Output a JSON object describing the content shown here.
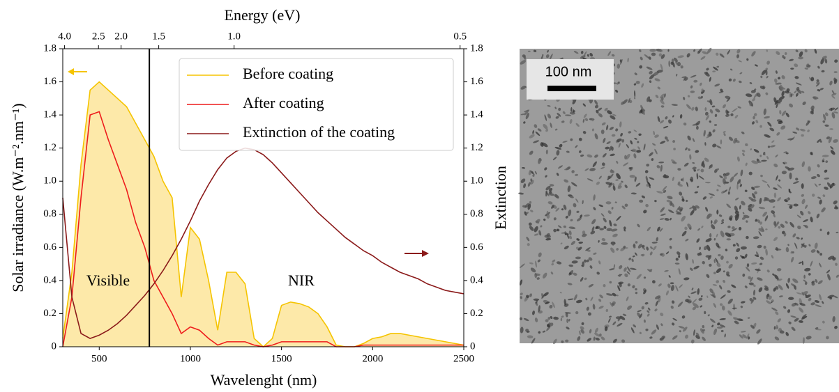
{
  "chart_data": {
    "type": "line",
    "title": "Energy (eV)",
    "x_label": "Wavelenght (nm)",
    "y_label": "Solar irradiance (W.m⁻².nm⁻¹)",
    "y2_label": "Extinction",
    "x": [
      300,
      350,
      400,
      450,
      500,
      550,
      600,
      650,
      700,
      750,
      800,
      850,
      900,
      950,
      1000,
      1050,
      1100,
      1150,
      1200,
      1250,
      1300,
      1350,
      1400,
      1450,
      1500,
      1550,
      1600,
      1650,
      1700,
      1750,
      1800,
      1850,
      1900,
      1950,
      2000,
      2050,
      2100,
      2150,
      2200,
      2250,
      2300,
      2350,
      2400,
      2450,
      2500
    ],
    "series": [
      {
        "name": "Before coating",
        "color": "#f5c400",
        "fill": "#fde9a9",
        "values": [
          0.05,
          0.45,
          1.1,
          1.55,
          1.6,
          1.55,
          1.5,
          1.45,
          1.35,
          1.25,
          1.15,
          1.0,
          0.9,
          0.3,
          0.72,
          0.65,
          0.4,
          0.1,
          0.45,
          0.45,
          0.38,
          0.05,
          0,
          0.05,
          0.25,
          0.27,
          0.26,
          0.24,
          0.2,
          0.12,
          0.01,
          0,
          0,
          0.02,
          0.05,
          0.06,
          0.08,
          0.08,
          0.07,
          0.06,
          0.05,
          0.04,
          0.03,
          0.02,
          0.01
        ]
      },
      {
        "name": "After coating",
        "color": "#ee1c1c",
        "values": [
          0,
          0.3,
          0.9,
          1.4,
          1.42,
          1.25,
          1.1,
          0.95,
          0.75,
          0.6,
          0.4,
          0.3,
          0.2,
          0.08,
          0.12,
          0.1,
          0.05,
          0.01,
          0.03,
          0.03,
          0.03,
          0.01,
          0,
          0.01,
          0.03,
          0.03,
          0.03,
          0.03,
          0.03,
          0.03,
          0,
          0,
          0,
          0.01,
          0.01,
          0.01,
          0.01,
          0.01,
          0.01,
          0.01,
          0.01,
          0.01,
          0.01,
          0.01,
          0.01
        ]
      },
      {
        "name": "Extinction of the coating",
        "color": "#8b1a1a",
        "axis": "y2",
        "values": [
          0.9,
          0.3,
          0.08,
          0.05,
          0.07,
          0.1,
          0.14,
          0.19,
          0.25,
          0.31,
          0.38,
          0.46,
          0.55,
          0.65,
          0.76,
          0.88,
          0.98,
          1.07,
          1.14,
          1.18,
          1.2,
          1.19,
          1.16,
          1.11,
          1.05,
          0.99,
          0.93,
          0.87,
          0.81,
          0.76,
          0.71,
          0.66,
          0.62,
          0.58,
          0.55,
          0.51,
          0.48,
          0.45,
          0.43,
          0.41,
          0.38,
          0.36,
          0.34,
          0.33,
          0.32
        ]
      }
    ],
    "xlim": [
      300,
      2500
    ],
    "xticks": [
      500,
      1000,
      1500,
      2000,
      2500
    ],
    "x2ticks": [
      {
        "value": 4,
        "label": "4.0"
      },
      {
        "value": 2.5,
        "label": "2.5"
      },
      {
        "value": 2,
        "label": "2.0"
      },
      {
        "value": 1.5,
        "label": "1.5"
      },
      {
        "value": 1,
        "label": "1.0"
      },
      0.5
    ],
    "ylim": [
      0,
      1.8
    ],
    "yticks": [
      0,
      0.2,
      0.4,
      0.6,
      0.8,
      {
        "value": 1,
        "label": "1.0"
      },
      1.2,
      1.4,
      1.6,
      1.8
    ],
    "y2lim": [
      0,
      1.8
    ],
    "y2ticks": [
      0,
      0.2,
      0.4,
      0.6,
      0.8,
      {
        "value": 1,
        "label": "1.0"
      },
      1.2,
      1.4,
      1.6,
      1.8
    ],
    "vline": 775,
    "annotations": [
      "Visible",
      "NIR"
    ],
    "legend": "upper right"
  },
  "image": {
    "scale_label": "100 nm"
  }
}
